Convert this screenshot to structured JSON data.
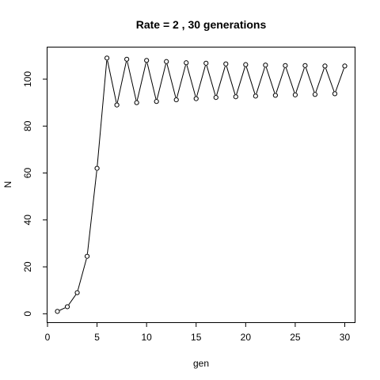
{
  "chart_data": {
    "type": "line",
    "title": "Rate = 2 ,  30 generations",
    "xlabel": "gen",
    "ylabel": "N",
    "xlim": [
      0,
      31
    ],
    "ylim": [
      -3.6,
      113.5
    ],
    "xticks": [
      0,
      5,
      10,
      15,
      20,
      25,
      30
    ],
    "yticks": [
      0,
      20,
      40,
      60,
      80,
      100
    ],
    "grid": false,
    "markers": "open-circle",
    "x": [
      1,
      2,
      3,
      4,
      5,
      6,
      7,
      8,
      9,
      10,
      11,
      12,
      13,
      14,
      15,
      16,
      17,
      18,
      19,
      20,
      21,
      22,
      23,
      24,
      25,
      26,
      27,
      28,
      29,
      30
    ],
    "y": [
      1,
      3,
      9,
      24.5,
      62,
      109,
      89,
      108.5,
      90,
      108,
      90.5,
      107.5,
      91.2,
      107,
      91.7,
      106.8,
      92.2,
      106.5,
      92.5,
      106.2,
      92.8,
      106,
      93.1,
      105.8,
      93.3,
      105.8,
      93.5,
      105.6,
      93.8,
      105.6
    ]
  }
}
